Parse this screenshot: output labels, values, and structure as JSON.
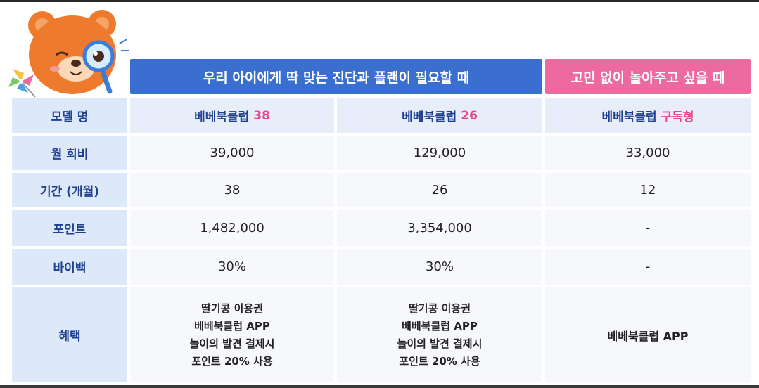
{
  "headers": {
    "plan_group": "우리 아이에게 딱 맞는 진단과 플랜이 필요할 때",
    "play_group": "고민 없이 놀아주고 싶을 때"
  },
  "labels": {
    "model": "모델 명",
    "monthly_fee": "월 회비",
    "period": "기간 (개월)",
    "points": "포인트",
    "buyback": "바이백",
    "benefits": "혜택"
  },
  "models": [
    {
      "name": "베베북클럽",
      "suffix": "38"
    },
    {
      "name": "베베북클럽",
      "suffix": "26"
    },
    {
      "name": "베베북클럽",
      "suffix": "구독형"
    }
  ],
  "monthly_fee": [
    "39,000",
    "129,000",
    "33,000"
  ],
  "period": [
    "38",
    "26",
    "12"
  ],
  "points": [
    "1,482,000",
    "3,354,000",
    "-"
  ],
  "buyback": [
    "30%",
    "30%",
    "-"
  ],
  "benefits": {
    "col1": [
      "딸기콩 이용권",
      "베베북클럽 APP",
      "놀이의 발견 결제시",
      "포인트 20% 사용"
    ],
    "col2": [
      "딸기콩 이용권",
      "베베북클럽 APP",
      "놀이의 발견 결제시",
      "포인트 20% 사용"
    ],
    "col3": "베베북클럽 APP"
  },
  "colors": {
    "blue_header": "#3a6fcf",
    "pink_header": "#ec6aa0",
    "accent_pink": "#e8478a",
    "label_bg": "#dde9f8"
  },
  "icons": [
    "bear-mascot-icon",
    "magnifier-icon",
    "pinwheel-icon"
  ]
}
